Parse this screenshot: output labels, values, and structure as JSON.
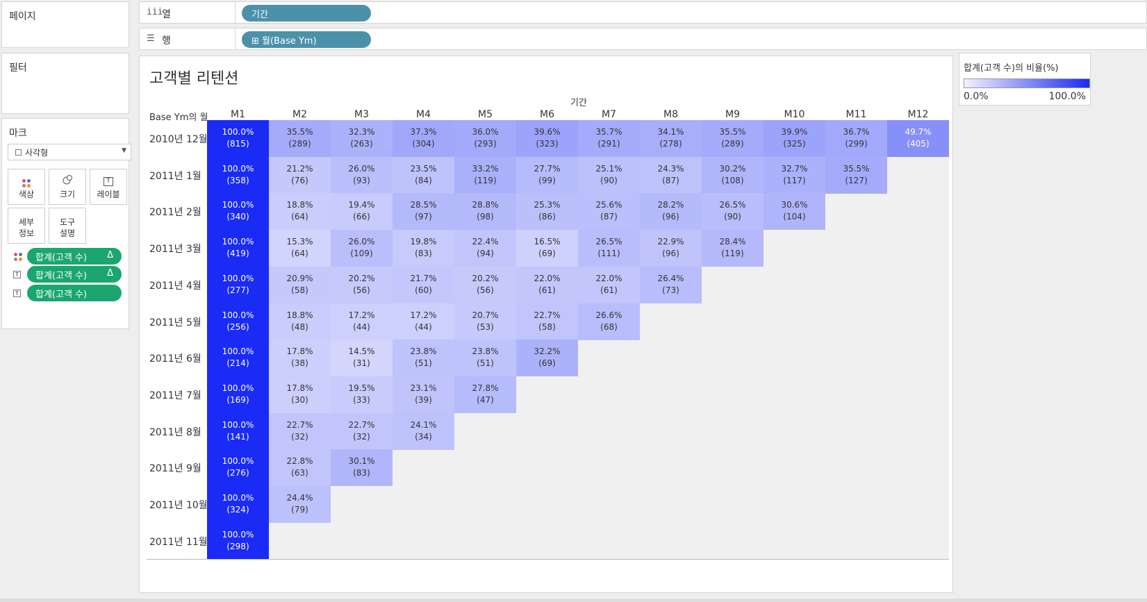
{
  "pages_pane": {
    "title": "페이지"
  },
  "filters_pane": {
    "title": "필터"
  },
  "marks": {
    "title": "마크",
    "mark_type": "사각형",
    "buttons": {
      "color": "색상",
      "size": "크기",
      "label": "레이블",
      "detail": "세부\n정보",
      "tooltip": "도구\n설명"
    },
    "fields": [
      {
        "text": "합계(고객 수)",
        "delta": "Δ",
        "type": "color-icon"
      },
      {
        "text": "합계(고객 수)",
        "delta": "Δ",
        "type": "label-icon"
      },
      {
        "text": "합계(고객 수)",
        "delta": "",
        "type": "label-icon"
      }
    ]
  },
  "shelves": {
    "columns": {
      "label": "열",
      "icon": "iii",
      "pill": "기간"
    },
    "rows": {
      "label": "행",
      "icon": "☰",
      "pill": "⊞ 월(Base Ym)"
    }
  },
  "viz": {
    "title": "고객별 리텐션",
    "column_header_title": "기간",
    "row_header_title": "Base Ym의 월"
  },
  "legend": {
    "title": "합계(고객 수)의 비율(%)",
    "min": "0.0%",
    "max": "100.0%",
    "color_min": "#f2f2fd",
    "color_max": "#1a2bf5"
  },
  "chart_data": {
    "type": "heatmap",
    "title": "고객별 리텐션",
    "xlabel": "기간",
    "ylabel": "Base Ym의 월",
    "columns": [
      "M1",
      "M2",
      "M3",
      "M4",
      "M5",
      "M6",
      "M7",
      "M8",
      "M9",
      "M10",
      "M11",
      "M12"
    ],
    "rows": [
      "2010년 12월",
      "2011년 1월",
      "2011년 2월",
      "2011년 3월",
      "2011년 4월",
      "2011년 5월",
      "2011년 6월",
      "2011년 7월",
      "2011년 8월",
      "2011년 9월",
      "2011년 10월",
      "2011년 11월"
    ],
    "percent": [
      [
        "100.0%",
        "35.5%",
        "32.3%",
        "37.3%",
        "36.0%",
        "39.6%",
        "35.7%",
        "34.1%",
        "35.5%",
        "39.9%",
        "36.7%",
        "49.7%"
      ],
      [
        "100.0%",
        "21.2%",
        "26.0%",
        "23.5%",
        "33.2%",
        "27.7%",
        "25.1%",
        "24.3%",
        "30.2%",
        "32.7%",
        "35.5%"
      ],
      [
        "100.0%",
        "18.8%",
        "19.4%",
        "28.5%",
        "28.8%",
        "25.3%",
        "25.6%",
        "28.2%",
        "26.5%",
        "30.6%"
      ],
      [
        "100.0%",
        "15.3%",
        "26.0%",
        "19.8%",
        "22.4%",
        "16.5%",
        "26.5%",
        "22.9%",
        "28.4%"
      ],
      [
        "100.0%",
        "20.9%",
        "20.2%",
        "21.7%",
        "20.2%",
        "22.0%",
        "22.0%",
        "26.4%"
      ],
      [
        "100.0%",
        "18.8%",
        "17.2%",
        "17.2%",
        "20.7%",
        "22.7%",
        "26.6%"
      ],
      [
        "100.0%",
        "17.8%",
        "14.5%",
        "23.8%",
        "23.8%",
        "32.2%"
      ],
      [
        "100.0%",
        "17.8%",
        "19.5%",
        "23.1%",
        "27.8%"
      ],
      [
        "100.0%",
        "22.7%",
        "22.7%",
        "24.1%"
      ],
      [
        "100.0%",
        "22.8%",
        "30.1%"
      ],
      [
        "100.0%",
        "24.4%"
      ],
      [
        "100.0%"
      ]
    ],
    "counts": [
      [
        "(815)",
        "(289)",
        "(263)",
        "(304)",
        "(293)",
        "(323)",
        "(291)",
        "(278)",
        "(289)",
        "(325)",
        "(299)",
        "(405)"
      ],
      [
        "(358)",
        "(76)",
        "(93)",
        "(84)",
        "(119)",
        "(99)",
        "(90)",
        "(87)",
        "(108)",
        "(117)",
        "(127)"
      ],
      [
        "(340)",
        "(64)",
        "(66)",
        "(97)",
        "(98)",
        "(86)",
        "(87)",
        "(96)",
        "(90)",
        "(104)"
      ],
      [
        "(419)",
        "(64)",
        "(109)",
        "(83)",
        "(94)",
        "(69)",
        "(111)",
        "(96)",
        "(119)"
      ],
      [
        "(277)",
        "(58)",
        "(56)",
        "(60)",
        "(56)",
        "(61)",
        "(61)",
        "(73)"
      ],
      [
        "(256)",
        "(48)",
        "(44)",
        "(44)",
        "(53)",
        "(58)",
        "(68)"
      ],
      [
        "(214)",
        "(38)",
        "(31)",
        "(51)",
        "(51)",
        "(69)"
      ],
      [
        "(169)",
        "(30)",
        "(33)",
        "(39)",
        "(47)"
      ],
      [
        "(141)",
        "(32)",
        "(32)",
        "(34)"
      ],
      [
        "(276)",
        "(63)",
        "(83)"
      ],
      [
        "(324)",
        "(79)"
      ],
      [
        "(298)"
      ]
    ]
  }
}
